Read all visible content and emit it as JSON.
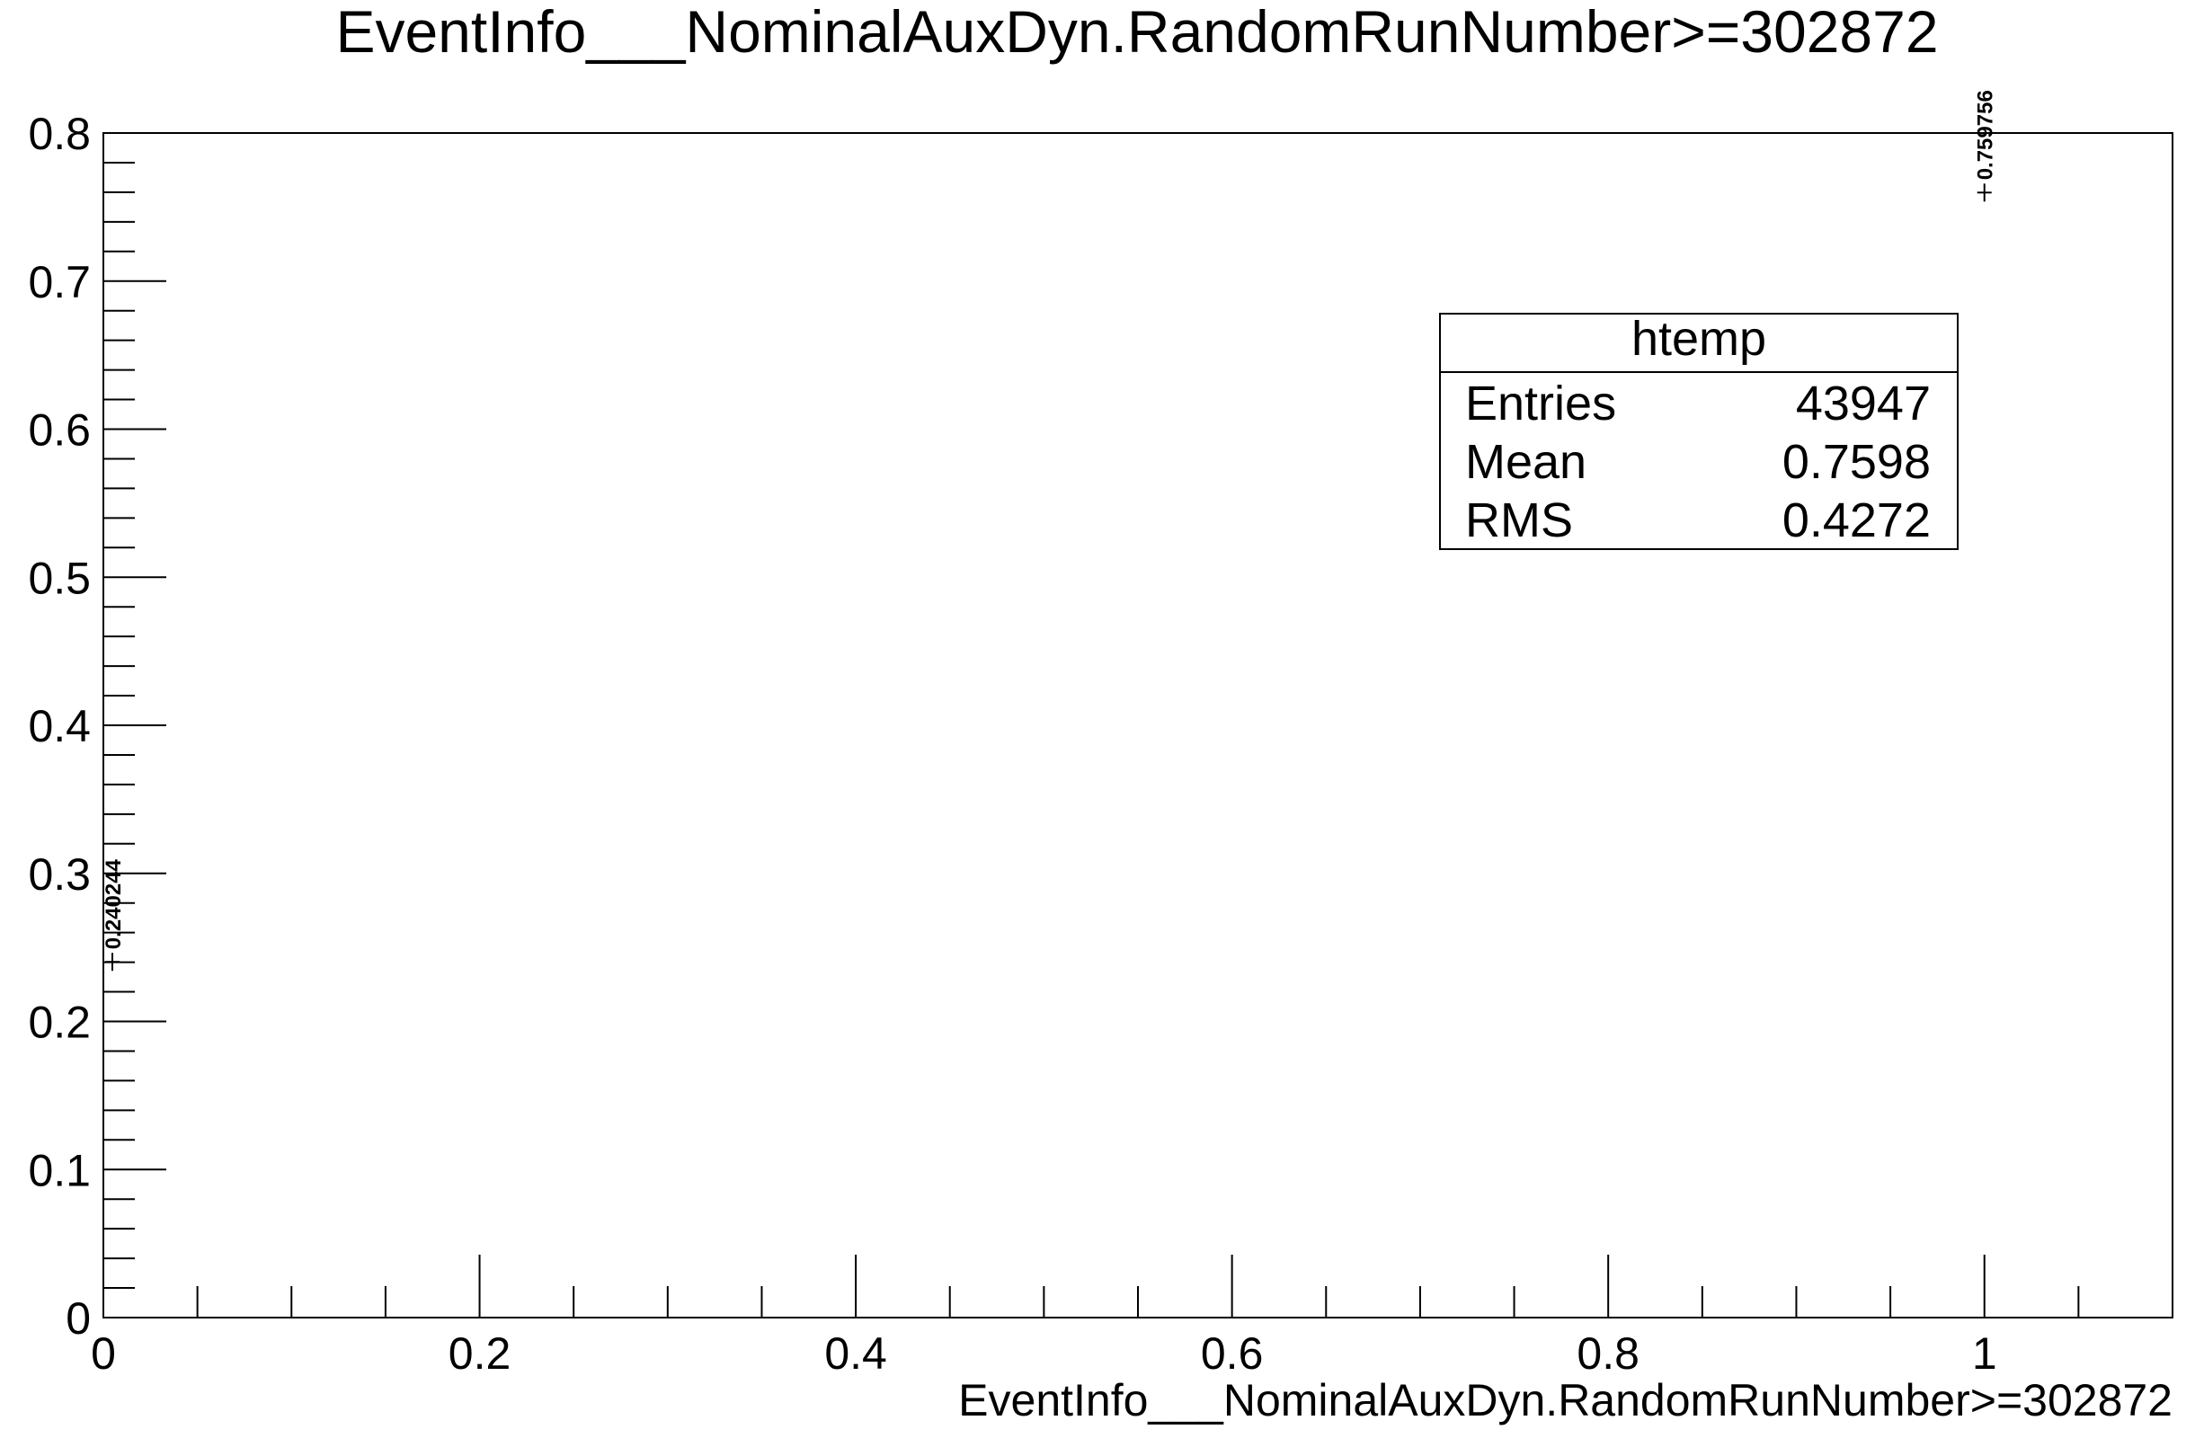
{
  "chart_data": {
    "type": "scatter",
    "title": "EventInfo___NominalAuxDyn.RandomRunNumber>=302872",
    "xlabel": "EventInfo___NominalAuxDyn.RandomRunNumber>=302872",
    "ylabel": "",
    "xlim": [
      0,
      1.1
    ],
    "ylim": [
      0,
      0.8
    ],
    "x_ticks": [
      0,
      0.2,
      0.4,
      0.6,
      0.8,
      1
    ],
    "x_tick_labels": [
      "0",
      "0.2",
      "0.4",
      "0.6",
      "0.8",
      "1"
    ],
    "y_ticks": [
      0,
      0.1,
      0.2,
      0.3,
      0.4,
      0.5,
      0.6,
      0.7,
      0.8
    ],
    "y_tick_labels": [
      "0",
      "0.1",
      "0.2",
      "0.3",
      "0.4",
      "0.5",
      "0.6",
      "0.7",
      "0.8"
    ],
    "x_minor_step": 0.05,
    "y_minor_step": 0.02,
    "grid": false,
    "series": [
      {
        "points": [
          {
            "x": 0,
            "y": 0.240244,
            "label": "0.240244"
          },
          {
            "x": 1,
            "y": 0.759756,
            "label": "0.759756"
          }
        ]
      }
    ],
    "stats_box": {
      "position": "top-right",
      "title": "htemp",
      "rows": [
        {
          "label": "Entries",
          "value": "43947"
        },
        {
          "label": "Mean",
          "value": "0.7598"
        },
        {
          "label": "RMS",
          "value": "0.4272"
        }
      ]
    }
  }
}
